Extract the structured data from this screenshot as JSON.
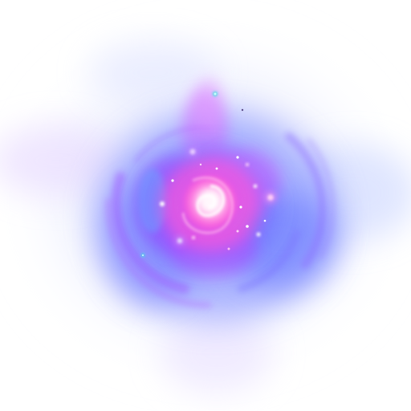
{
  "scene": {
    "subject": "glowing-nebula-orb",
    "colors": {
      "background": "#ffffff",
      "outer_haze": "#cfd6ff",
      "blue_glow": "#5a6cff",
      "violet": "#b04cff",
      "magenta": "#ff5ad8",
      "core": "#ffd6f4",
      "cyan_spark": "#3fe3e0"
    }
  }
}
